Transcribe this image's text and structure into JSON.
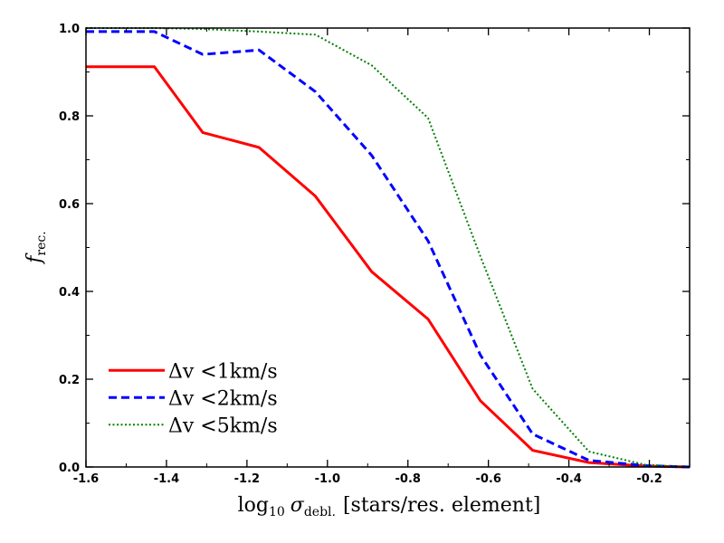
{
  "chart_data": {
    "type": "line",
    "xlabel_main": "log",
    "xlabel_sub": "10",
    "xlabel_sigma": "σ",
    "xlabel_sigma_sub": "debl.",
    "xlabel_rest": "[stars/res. element]",
    "ylabel_main": "f",
    "ylabel_sub": "rec.",
    "xlim": [
      -1.6,
      -0.1
    ],
    "ylim": [
      0.0,
      1.0
    ],
    "xticks": [
      -1.6,
      -1.4,
      -1.2,
      -1.0,
      -0.8,
      -0.6,
      -0.4,
      -0.2
    ],
    "xtick_labels": [
      "-1.6",
      "-1.4",
      "-1.2",
      "-1.0",
      "-0.8",
      "-0.6",
      "-0.4",
      "-0.2"
    ],
    "yticks": [
      0.0,
      0.2,
      0.4,
      0.6,
      0.8,
      1.0
    ],
    "ytick_labels": [
      "0.0",
      "0.2",
      "0.4",
      "0.6",
      "0.8",
      "1.0"
    ],
    "legend_position": "bottom-left",
    "series": [
      {
        "name": "Δv <1km/s",
        "color": "#ff0000",
        "style": "solid",
        "x": [
          -1.6,
          -1.43,
          -1.31,
          -1.17,
          -1.03,
          -0.89,
          -0.75,
          -0.62,
          -0.49,
          -0.35,
          -0.21,
          -0.1
        ],
        "y": [
          0.912,
          0.912,
          0.762,
          0.728,
          0.617,
          0.445,
          0.337,
          0.151,
          0.038,
          0.01,
          0.002,
          0.0
        ]
      },
      {
        "name": "Δv <2km/s",
        "color": "#0000ff",
        "style": "dashed",
        "x": [
          -1.6,
          -1.43,
          -1.31,
          -1.17,
          -1.03,
          -0.89,
          -0.75,
          -0.62,
          -0.49,
          -0.35,
          -0.21,
          -0.1
        ],
        "y": [
          0.992,
          0.992,
          0.94,
          0.95,
          0.855,
          0.71,
          0.515,
          0.255,
          0.075,
          0.015,
          0.003,
          0.0
        ]
      },
      {
        "name": "Δv <5km/s",
        "color": "#008000",
        "style": "dotted",
        "x": [
          -1.6,
          -1.43,
          -1.31,
          -1.17,
          -1.03,
          -0.89,
          -0.75,
          -0.62,
          -0.49,
          -0.35,
          -0.21,
          -0.1
        ],
        "y": [
          1.0,
          1.0,
          0.998,
          0.992,
          0.985,
          0.915,
          0.795,
          0.48,
          0.178,
          0.035,
          0.005,
          0.0
        ]
      }
    ]
  }
}
